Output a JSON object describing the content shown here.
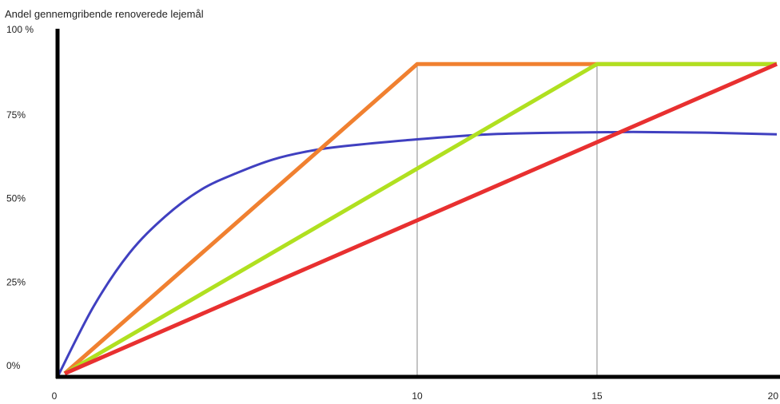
{
  "chart_data": {
    "type": "line",
    "ylabel": "Andel gennemgribende renoverede lejemål",
    "xlim": [
      0,
      20
    ],
    "ylim": [
      0,
      1.05
    ],
    "grid": false,
    "x_ticks": [
      {
        "label": "0",
        "value": 0
      },
      {
        "label": "10",
        "value": 10
      },
      {
        "label": "15",
        "value": 15
      },
      {
        "label": "20",
        "value": 20
      }
    ],
    "y_ticks": [
      {
        "label": "0%",
        "value": 0
      },
      {
        "label": "25%",
        "value": 0.25
      },
      {
        "label": "50%",
        "value": 0.5
      },
      {
        "label": "75%",
        "value": 0.75
      },
      {
        "label": "100 %",
        "value": 1.0
      }
    ],
    "reference_lines_x": [
      10,
      15
    ],
    "series": [
      {
        "color": "#4040c0",
        "x": [
          0,
          1,
          2,
          3,
          4,
          5,
          6,
          7,
          8,
          10,
          12,
          14,
          16,
          18,
          20
        ],
        "y": [
          0,
          0.21,
          0.37,
          0.48,
          0.56,
          0.61,
          0.65,
          0.675,
          0.69,
          0.71,
          0.725,
          0.73,
          0.732,
          0.73,
          0.725
        ]
      },
      {
        "color": "#f08030",
        "x": [
          0.2,
          10,
          20
        ],
        "y": [
          0.01,
          0.935,
          0.935
        ]
      },
      {
        "color": "#b0e020",
        "x": [
          0.2,
          15,
          20
        ],
        "y": [
          0.01,
          0.935,
          0.935
        ]
      },
      {
        "color": "#e83030",
        "x": [
          0.2,
          20
        ],
        "y": [
          0.01,
          0.935
        ]
      }
    ]
  }
}
